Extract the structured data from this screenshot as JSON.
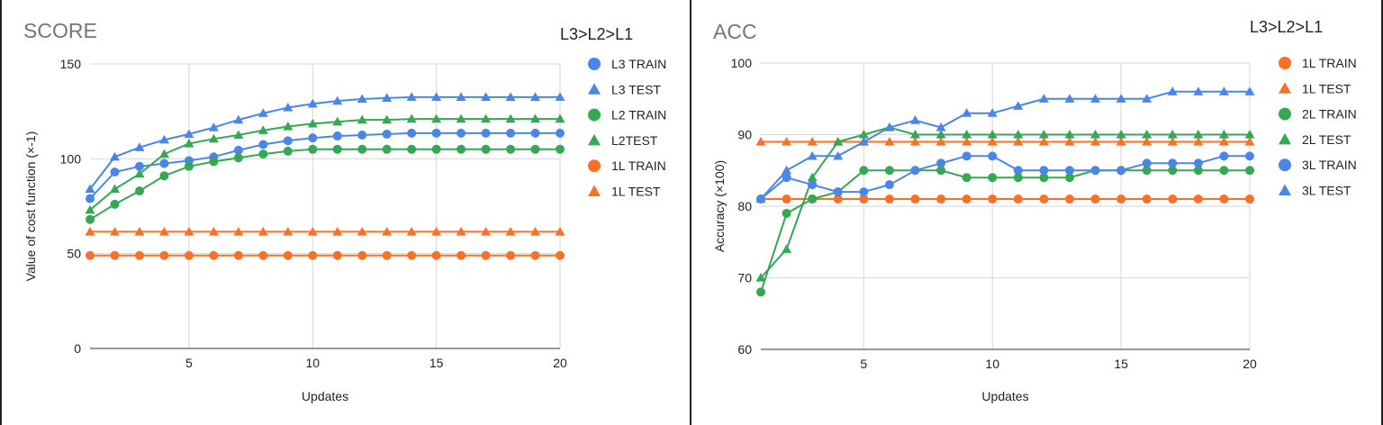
{
  "chart_data": [
    {
      "type": "line",
      "title": "SCORE",
      "subtitle": "L3>L2>L1",
      "xlabel": "Updates",
      "ylabel": "Value of cost function (×-1)",
      "xlim": [
        1,
        20
      ],
      "ylim": [
        0,
        150
      ],
      "xticks": [
        5,
        10,
        15,
        20
      ],
      "yticks": [
        0,
        50,
        100,
        150
      ],
      "grid": true,
      "legend": "right",
      "x": [
        1,
        2,
        3,
        4,
        5,
        6,
        7,
        8,
        9,
        10,
        11,
        12,
        13,
        14,
        15,
        16,
        17,
        18,
        19,
        20
      ],
      "series": [
        {
          "name": "L3 TRAIN",
          "color": "#4a86e8",
          "marker": "circle",
          "values": [
            79,
            93,
            96,
            97.5,
            99,
            101,
            104.5,
            107.5,
            109.5,
            111,
            112,
            112.5,
            113,
            113.5,
            113.5,
            113.5,
            113.5,
            113.5,
            113.5,
            113.5
          ]
        },
        {
          "name": "L3 TEST",
          "color": "#4a86e8",
          "marker": "triangle",
          "values": [
            84,
            101,
            106,
            110,
            113,
            116.5,
            120.5,
            124,
            127,
            129,
            130.5,
            131.5,
            132,
            132.5,
            132.5,
            132.5,
            132.5,
            132.5,
            132.5,
            132.5
          ]
        },
        {
          "name": "L2 TRAIN",
          "color": "#34a853",
          "marker": "circle",
          "values": [
            68,
            76,
            83,
            91,
            96,
            98.5,
            100.5,
            102.5,
            104,
            105,
            105,
            105,
            105,
            105,
            105,
            105,
            105,
            105,
            105,
            105
          ]
        },
        {
          "name": "L2TEST",
          "color": "#34a853",
          "marker": "triangle",
          "values": [
            73,
            84,
            92,
            102.5,
            108,
            110.5,
            112.5,
            115,
            117,
            118.5,
            119.5,
            120.5,
            120.5,
            121,
            121,
            121,
            121,
            121,
            121,
            121
          ]
        },
        {
          "name": "1L TRAIN",
          "color": "#fa7026",
          "marker": "circle",
          "values": [
            49,
            49,
            49,
            49,
            49,
            49,
            49,
            49,
            49,
            49,
            49,
            49,
            49,
            49,
            49,
            49,
            49,
            49,
            49,
            49
          ]
        },
        {
          "name": "1L TEST",
          "color": "#fa7026",
          "marker": "triangle",
          "values": [
            61.5,
            61.5,
            61.5,
            61.5,
            61.5,
            61.5,
            61.5,
            61.5,
            61.5,
            61.5,
            61.5,
            61.5,
            61.5,
            61.5,
            61.5,
            61.5,
            61.5,
            61.5,
            61.5,
            61.5
          ]
        }
      ]
    },
    {
      "type": "line",
      "title": "ACC",
      "subtitle": "L3>L2>L1",
      "xlabel": "Updates",
      "ylabel": "Accuracy (×100)",
      "xlim": [
        1,
        20
      ],
      "ylim": [
        60,
        100
      ],
      "xticks": [
        5,
        10,
        15,
        20
      ],
      "yticks": [
        60,
        70,
        80,
        90,
        100
      ],
      "grid": true,
      "legend": "right",
      "x": [
        1,
        2,
        3,
        4,
        5,
        6,
        7,
        8,
        9,
        10,
        11,
        12,
        13,
        14,
        15,
        16,
        17,
        18,
        19,
        20
      ],
      "series": [
        {
          "name": "1L TRAIN",
          "color": "#fa7026",
          "marker": "circle",
          "values": [
            81,
            81,
            81,
            81,
            81,
            81,
            81,
            81,
            81,
            81,
            81,
            81,
            81,
            81,
            81,
            81,
            81,
            81,
            81,
            81
          ]
        },
        {
          "name": "1L TEST",
          "color": "#fa7026",
          "marker": "triangle",
          "values": [
            89,
            89,
            89,
            89,
            89,
            89,
            89,
            89,
            89,
            89,
            89,
            89,
            89,
            89,
            89,
            89,
            89,
            89,
            89,
            89
          ]
        },
        {
          "name": "2L TRAIN",
          "color": "#34a853",
          "marker": "circle",
          "values": [
            68,
            79,
            81,
            82,
            85,
            85,
            85,
            85,
            84,
            84,
            84,
            84,
            84,
            85,
            85,
            85,
            85,
            85,
            85,
            85
          ]
        },
        {
          "name": "2L TEST",
          "color": "#34a853",
          "marker": "triangle",
          "values": [
            70,
            74,
            84,
            89,
            90,
            91,
            90,
            90,
            90,
            90,
            90,
            90,
            90,
            90,
            90,
            90,
            90,
            90,
            90,
            90
          ]
        },
        {
          "name": "3L TRAIN",
          "color": "#4a86e8",
          "marker": "circle",
          "values": [
            81,
            84,
            83,
            82,
            82,
            83,
            85,
            86,
            87,
            87,
            85,
            85,
            85,
            85,
            85,
            86,
            86,
            86,
            87,
            87
          ]
        },
        {
          "name": "3L TEST",
          "color": "#4a86e8",
          "marker": "triangle",
          "values": [
            81,
            85,
            87,
            87,
            89,
            91,
            92,
            91,
            93,
            93,
            94,
            95,
            95,
            95,
            95,
            95,
            96,
            96,
            96,
            96
          ]
        }
      ]
    }
  ]
}
